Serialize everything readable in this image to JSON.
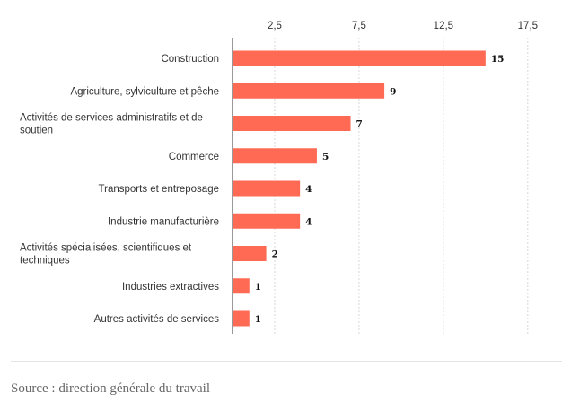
{
  "chart_data": {
    "type": "bar",
    "orientation": "horizontal",
    "categories": [
      "Construction",
      "Agriculture, sylviculture et pêche",
      "Activités de services administratifs et de soutien",
      "Commerce",
      "Transports et entreposage",
      "Industrie manufacturière",
      "Activités spécialisées, scientifiques et techniques",
      "Industries extractives",
      "Autres activités de services"
    ],
    "values": [
      15,
      9,
      7,
      5,
      4,
      4,
      2,
      1,
      1
    ],
    "value_labels": [
      "15",
      "9",
      "7",
      "5",
      "4",
      "4",
      "2",
      "1",
      "1"
    ],
    "x_ticks": [
      2.5,
      7.5,
      12.5,
      17.5
    ],
    "x_tick_labels": [
      "2,5",
      "7,5",
      "12,5",
      "17,5"
    ],
    "xlim": [
      0,
      19
    ],
    "axis_position": "top",
    "grid": true,
    "bar_color": "#ff6a55"
  },
  "footer": {
    "source": "Source : direction générale du travail"
  }
}
